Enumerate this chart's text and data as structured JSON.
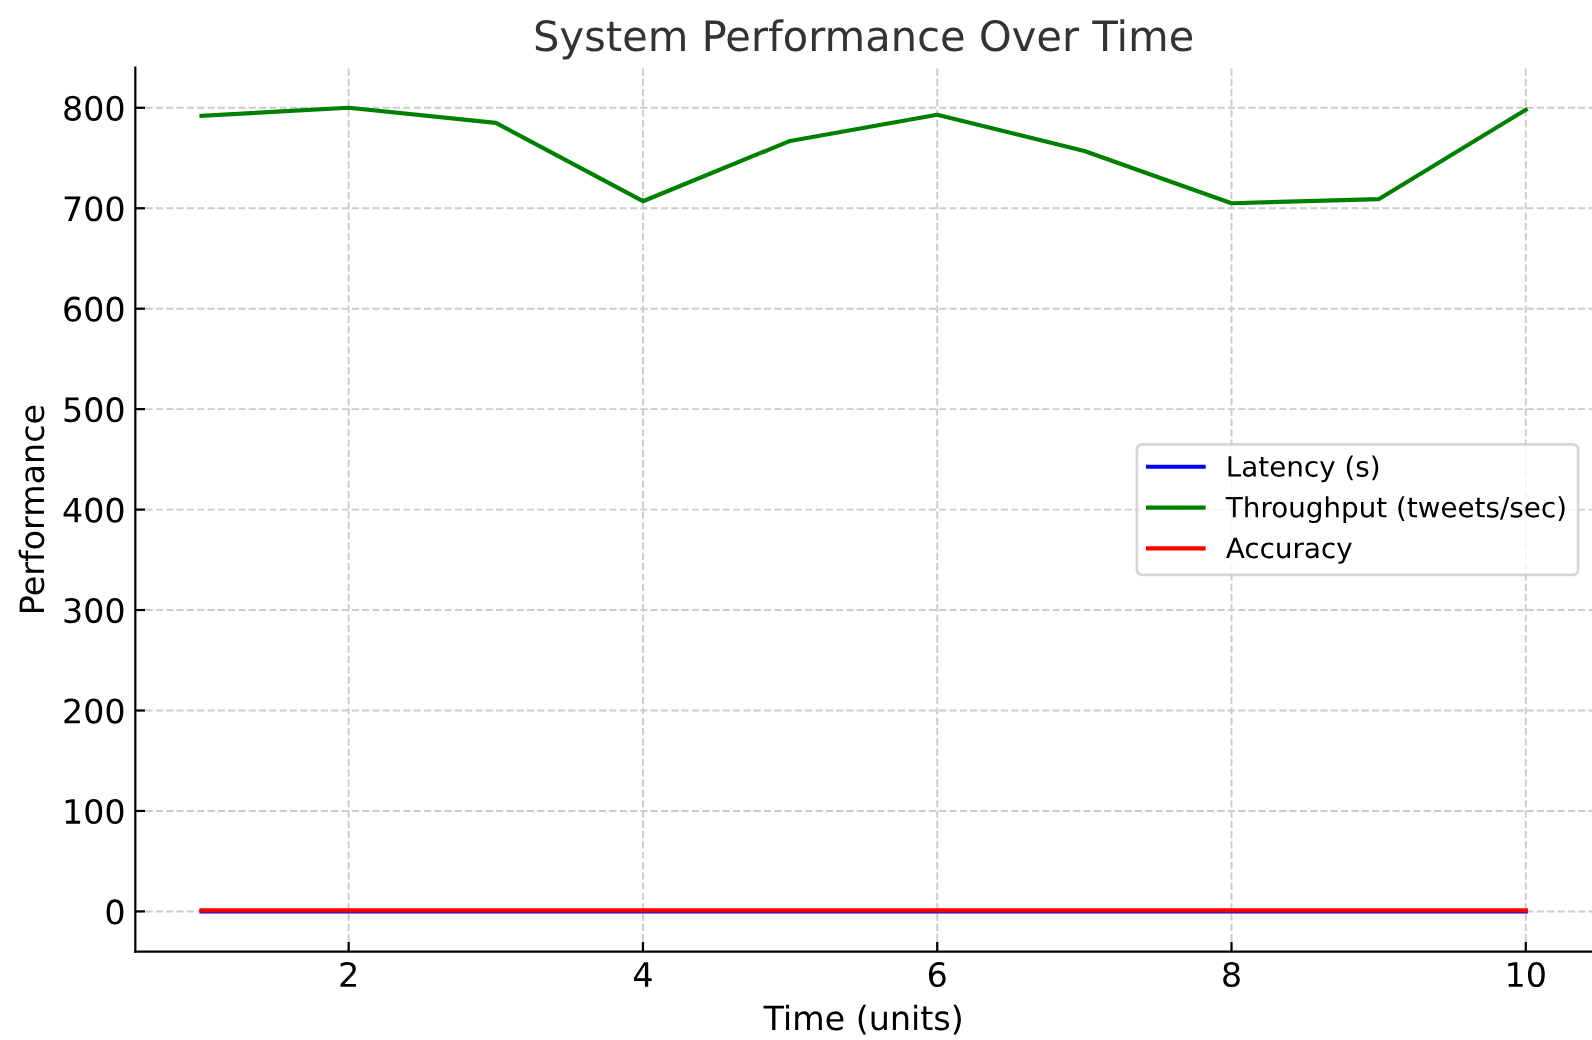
{
  "chart_data": {
    "type": "line",
    "title": "System Performance Over Time",
    "xlabel": "Time (units)",
    "ylabel": "Performance",
    "x": [
      1,
      2,
      3,
      4,
      5,
      6,
      7,
      8,
      9,
      10
    ],
    "series": [
      {
        "name": "Latency (s)",
        "color": "#0000ff",
        "values": [
          0,
          0,
          0,
          0,
          0,
          0,
          0,
          0,
          0,
          0
        ]
      },
      {
        "name": "Throughput (tweets/sec)",
        "color": "#008000",
        "values": [
          792,
          800,
          785,
          707,
          767,
          793,
          757,
          705,
          709,
          798
        ]
      },
      {
        "name": "Accuracy",
        "color": "#ff0000",
        "values": [
          1,
          1,
          1,
          1,
          1,
          1,
          1,
          1,
          1,
          1
        ]
      }
    ],
    "xlim": [
      0.55,
      10.45
    ],
    "ylim": [
      -40,
      840
    ],
    "xticks": [
      2,
      4,
      6,
      8,
      10
    ],
    "yticks": [
      0,
      100,
      200,
      300,
      400,
      500,
      600,
      700,
      800
    ],
    "grid": true,
    "legend": "center right",
    "line_style": "solid"
  }
}
